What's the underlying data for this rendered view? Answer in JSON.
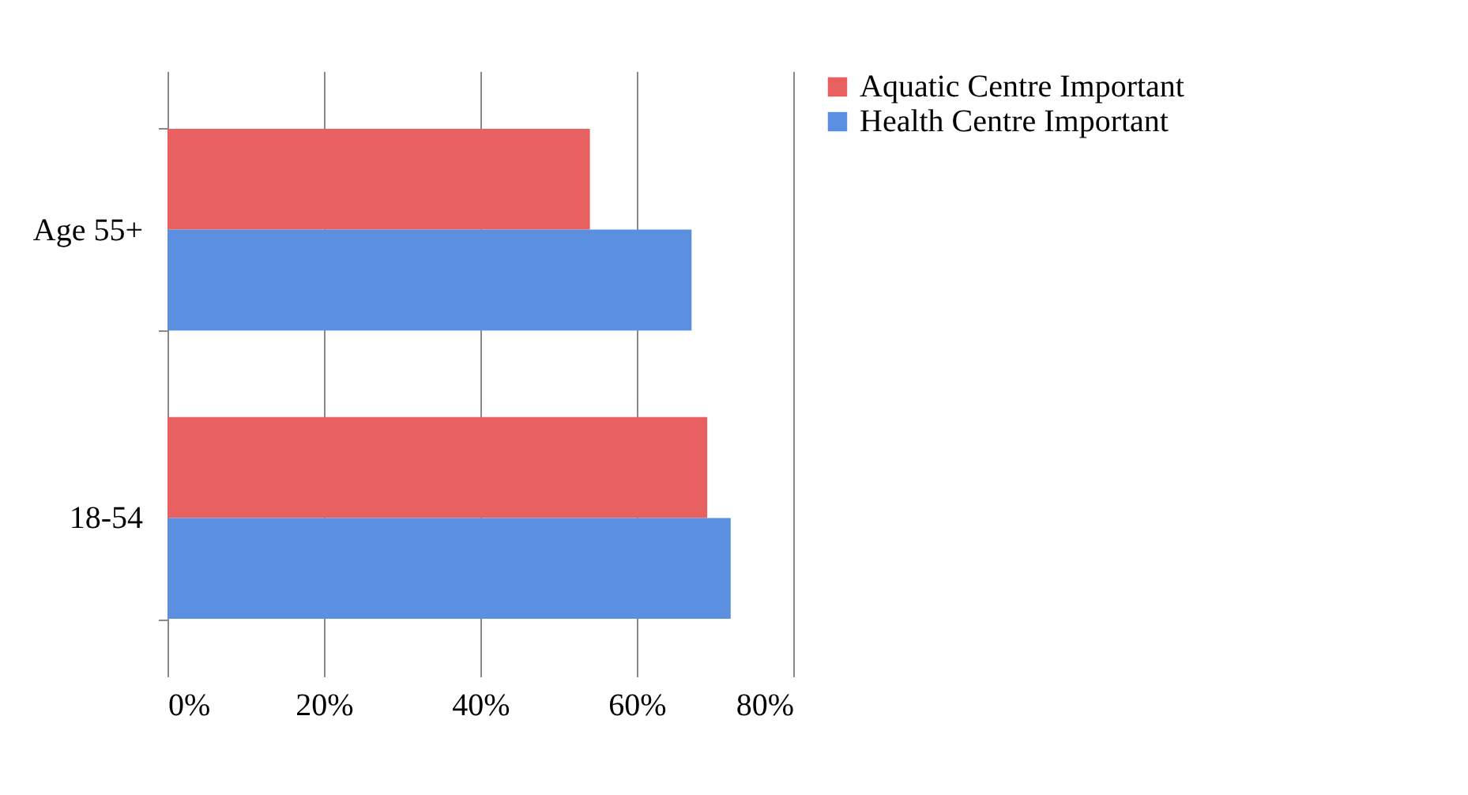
{
  "chart_data": {
    "type": "bar",
    "orientation": "horizontal",
    "categories": [
      "Age 55+",
      "18-54"
    ],
    "series": [
      {
        "name": "Aquatic Centre Important",
        "color": "#e8605f",
        "values": [
          54,
          69
        ]
      },
      {
        "name": "Health Centre Important",
        "color": "#5b8fe0",
        "values": [
          67,
          72
        ]
      }
    ],
    "xlim": [
      0,
      80
    ],
    "xticks": [
      {
        "value": 0,
        "label": "0%"
      },
      {
        "value": 20,
        "label": "20%"
      },
      {
        "value": 40,
        "label": "40%"
      },
      {
        "value": 60,
        "label": "60%"
      },
      {
        "value": 80,
        "label": "80%"
      }
    ],
    "grid": "x",
    "legend": "right"
  }
}
